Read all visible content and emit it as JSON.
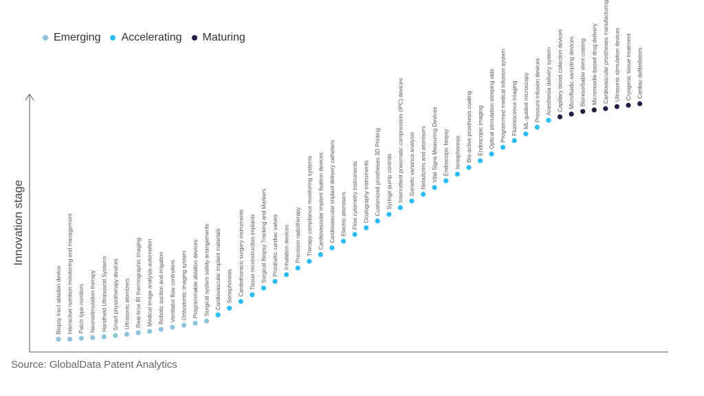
{
  "chart_data": {
    "type": "scatter",
    "title": "",
    "ylabel": "Innovation stage",
    "xlabel": "",
    "ylim": [
      0,
      1
    ],
    "grid": false,
    "legend_position": "top-left",
    "series": [
      {
        "name": "Emerging",
        "color": "#8fc3dc",
        "labels": [
          "Biopsy tract ablation device",
          "Interactive nutrition monitoring and management",
          "Patch type monitors",
          "Neurostimulation therapy",
          "Handheld Ultrasound Systems",
          "Smart physiotherapy devices",
          "Ultrasonic atomizers",
          "Real-time IR thermographic imaging",
          "Medical image analysis automation",
          "Robotic suction and irrigation",
          "Ventilator flow controllers",
          "Orthodontic imaging system",
          "Programmable ablation devices",
          "Surgical system safety arrangements"
        ],
        "values": [
          0.05,
          0.05,
          0.053,
          0.056,
          0.059,
          0.064,
          0.069,
          0.075,
          0.08,
          0.088,
          0.096,
          0.104,
          0.112,
          0.12
        ]
      },
      {
        "name": "Accelerating",
        "color": "#2bbcf5",
        "labels": [
          "Cardiovascular implant materials",
          "Sonophoresis",
          "Cardiothoracic surgery instruments",
          "Tissue reconstruction implants",
          "Surgical Biopsy Tracking and Markers",
          "Prosthetic cardiac valves",
          "Inhalation devices",
          "Precision radiotherapy",
          "Therapy compliance monitoring systems",
          "Cardiovascular implant fixation devices",
          "Cardiovascular implant delivery catheters",
          "Electric atomisers",
          "Flow cytometry instruments",
          "Oculography instruments",
          "Customized prostheses 3D Printing",
          "Syringe pump controls",
          "Intermittent pneumatic compression (IPC) devices",
          "Genetic variance analysis",
          "Nebulizers and atomisers",
          "Vital Signs Measuring Devices",
          "Endoscopic biopsy",
          "Iontophoresis",
          "Bio-active prosthesis coating",
          "Endoscopic imaging",
          "Optical stimulation sleeping aids",
          "Programmed medical infusion system",
          "Fluorescence imaging",
          "ML-guided microscopy",
          "Pressure infusion devices",
          "Anesthesia delivery system"
        ],
        "values": [
          0.144,
          0.17,
          0.196,
          0.222,
          0.248,
          0.274,
          0.3,
          0.326,
          0.352,
          0.378,
          0.404,
          0.43,
          0.456,
          0.482,
          0.508,
          0.534,
          0.56,
          0.586,
          0.612,
          0.638,
          0.664,
          0.69,
          0.716,
          0.742,
          0.768,
          0.794,
          0.82,
          0.846,
          0.872,
          0.899
        ]
      },
      {
        "name": "Maturing",
        "color": "#281a45",
        "labels": [
          "Capillary blood collection devices",
          "Microfluidic sampling devices",
          "Bioresorbable stent coating",
          "Microneedle-based drug delivery",
          "Cardiovascular prostheses manufacturing",
          "Ultrasonic stimulation devices",
          "Cryogenic tissue treatment",
          "Cardiac defibrillators"
        ],
        "values": [
          0.912,
          0.923,
          0.933,
          0.939,
          0.944,
          0.952,
          0.957,
          0.963
        ]
      }
    ]
  },
  "source": "Source: GlobalData Patent Analytics"
}
